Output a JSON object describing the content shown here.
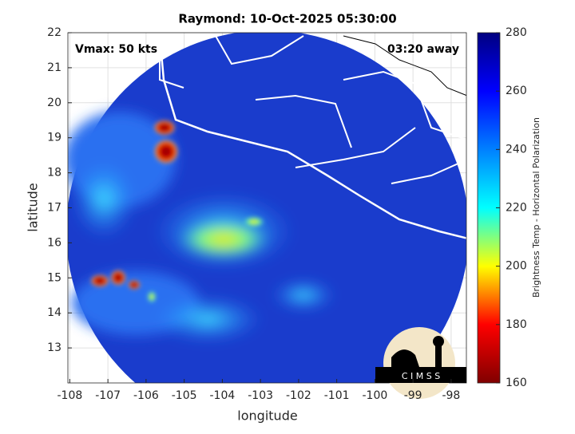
{
  "chart_data": {
    "type": "heatmap",
    "title": "Raymond: 10-Oct-2025 05:30:00",
    "annotations": [
      "Vmax: 50 kts",
      "03:20 away"
    ],
    "xlabel": "longitude",
    "ylabel": "latitude",
    "xlim": [
      -108.05,
      -97.6
    ],
    "xticks": [
      -108,
      -107,
      -106,
      -105,
      -104,
      -103,
      -102,
      -101,
      -100,
      -99,
      -98
    ],
    "ylim": [
      12,
      22
    ],
    "yticks": [
      13,
      14,
      15,
      16,
      17,
      18,
      19,
      20,
      21,
      22
    ],
    "grid": true,
    "colormap": "jet",
    "colorbar": {
      "label": "Brightness Temp - Horizontal Polarization",
      "lim": [
        160,
        280
      ],
      "ticks": [
        160,
        180,
        200,
        220,
        240,
        260,
        280
      ]
    },
    "logo_text": "C I M S S"
  }
}
